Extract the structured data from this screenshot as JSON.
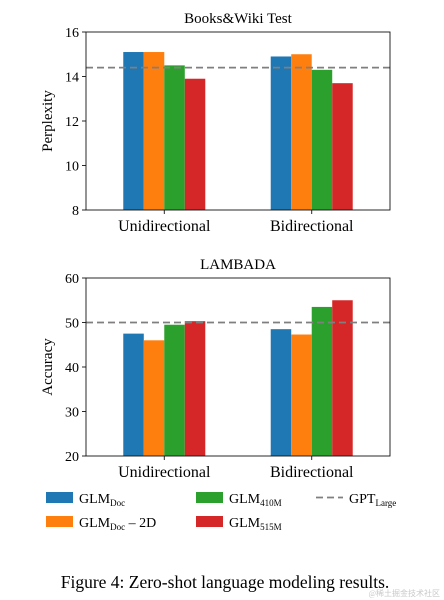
{
  "chart_data": [
    {
      "type": "bar",
      "title": "Books&Wiki Test",
      "xlabel": "",
      "ylabel": "Perplexity",
      "categories": [
        "Unidirectional",
        "Bidirectional"
      ],
      "ylim": [
        8,
        16
      ],
      "yticks": [
        8,
        10,
        12,
        14,
        16
      ],
      "grid": false,
      "series": [
        {
          "name": "GLM_Doc",
          "color": "#1f77b4",
          "values": [
            15.1,
            14.9
          ]
        },
        {
          "name": "GLM_Doc – 2D",
          "color": "#ff7f0e",
          "values": [
            15.1,
            15.0
          ]
        },
        {
          "name": "GLM_410M",
          "color": "#2ca02c",
          "values": [
            14.5,
            14.3
          ]
        },
        {
          "name": "GLM_515M",
          "color": "#d62728",
          "values": [
            13.9,
            13.7
          ]
        }
      ],
      "reference_line": {
        "name": "GPT_Large",
        "value": 14.4,
        "color": "#7f7f7f",
        "style": "dashed"
      }
    },
    {
      "type": "bar",
      "title": "LAMBADA",
      "xlabel": "",
      "ylabel": "Accuracy",
      "categories": [
        "Unidirectional",
        "Bidirectional"
      ],
      "ylim": [
        20,
        60
      ],
      "yticks": [
        20,
        30,
        40,
        50,
        60
      ],
      "grid": false,
      "series": [
        {
          "name": "GLM_Doc",
          "color": "#1f77b4",
          "values": [
            47.5,
            48.5
          ]
        },
        {
          "name": "GLM_Doc – 2D",
          "color": "#ff7f0e",
          "values": [
            46.0,
            47.3
          ]
        },
        {
          "name": "GLM_410M",
          "color": "#2ca02c",
          "values": [
            49.5,
            53.5
          ]
        },
        {
          "name": "GLM_515M",
          "color": "#d62728",
          "values": [
            50.3,
            55.0
          ]
        }
      ],
      "reference_line": {
        "name": "GPT_Large",
        "value": 50.0,
        "color": "#7f7f7f",
        "style": "dashed"
      }
    }
  ],
  "legend": {
    "placement": "bottom",
    "items": [
      {
        "base": "GLM",
        "sub": "Doc",
        "suffix": "",
        "color": "#1f77b4",
        "kind": "patch"
      },
      {
        "base": "GLM",
        "sub": "Doc",
        "suffix": " – 2D",
        "color": "#ff7f0e",
        "kind": "patch"
      },
      {
        "base": "GLM",
        "sub": "410M",
        "suffix": "",
        "color": "#2ca02c",
        "kind": "patch"
      },
      {
        "base": "GLM",
        "sub": "515M",
        "suffix": "",
        "color": "#d62728",
        "kind": "patch"
      },
      {
        "base": "GPT",
        "sub": "Large",
        "suffix": "",
        "color": "#7f7f7f",
        "kind": "dashed"
      }
    ]
  },
  "caption": "Figure 4: Zero-shot language modeling results.",
  "watermark": "@稀土掘金技术社区"
}
